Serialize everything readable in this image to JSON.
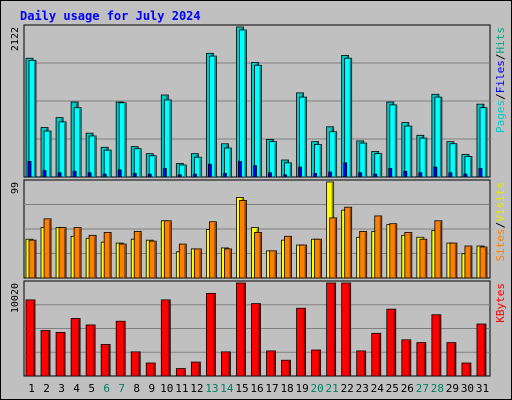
{
  "chart_data": {
    "type": "bar",
    "title": "Daily usage for July 2024",
    "categories": [
      "1",
      "2",
      "3",
      "4",
      "5",
      "6",
      "7",
      "8",
      "9",
      "10",
      "11",
      "12",
      "13",
      "14",
      "15",
      "16",
      "17",
      "18",
      "19",
      "20",
      "21",
      "22",
      "23",
      "24",
      "25",
      "26",
      "27",
      "28",
      "29",
      "30",
      "31"
    ],
    "weekend_days": [
      "6",
      "7",
      "13",
      "14",
      "20",
      "21",
      "27",
      "28"
    ],
    "panels": [
      {
        "name": "pages-files-hits",
        "ymax_label": "2122",
        "ylim": [
          0,
          2122
        ],
        "series": [
          {
            "name": "Hits",
            "color": "#00cccc",
            "values": [
              1680,
              700,
              840,
              1060,
              620,
              420,
              1060,
              430,
              330,
              1160,
              190,
              330,
              1750,
              470,
              2122,
              1620,
              530,
              240,
              1190,
              500,
              710,
              1720,
              510,
              360,
              1060,
              770,
              590,
              1170,
              500,
              320,
              1030
            ]
          },
          {
            "name": "Files",
            "color": "#00ffff",
            "values": [
              1650,
              650,
              780,
              980,
              580,
              380,
              1050,
              400,
              300,
              1090,
              170,
              280,
              1710,
              410,
              2080,
              1580,
              500,
              200,
              1130,
              460,
              640,
              1680,
              480,
              330,
              1020,
              720,
              550,
              1130,
              470,
              290,
              980
            ]
          },
          {
            "name": "Pages",
            "color": "#0000ff",
            "values": [
              220,
              90,
              60,
              80,
              60,
              40,
              100,
              50,
              40,
              120,
              30,
              40,
              180,
              50,
              220,
              160,
              60,
              30,
              140,
              50,
              70,
              200,
              60,
              40,
              120,
              80,
              60,
              140,
              60,
              40,
              120
            ]
          }
        ],
        "legend": [
          "Pages",
          "Files",
          "Hits"
        ]
      },
      {
        "name": "sites-visits",
        "ymax_label": "99",
        "ylim": [
          0,
          99
        ],
        "series": [
          {
            "name": "Visits",
            "color": "#ffff00",
            "values": [
              40,
              52,
              52,
              43,
              41,
              37,
              36,
              40,
              39,
              59,
              27,
              30,
              50,
              31,
              83,
              52,
              28,
              39,
              34,
              40,
              99,
              70,
              42,
              48,
              55,
              44,
              42,
              49,
              36,
              25,
              33
            ]
          },
          {
            "name": "Sites",
            "color": "#ff8000",
            "values": [
              39,
              61,
              52,
              52,
              44,
              47,
              35,
              48,
              38,
              59,
              35,
              30,
              58,
              30,
              80,
              47,
              28,
              43,
              34,
              40,
              62,
              73,
              48,
              64,
              56,
              47,
              40,
              59,
              36,
              33,
              32
            ]
          }
        ],
        "legend": [
          "Sites",
          "Visits"
        ]
      },
      {
        "name": "kbytes",
        "ymax_label": "10020",
        "ylim": [
          0,
          10020
        ],
        "series": [
          {
            "name": "KBytes",
            "color": "#ff0000",
            "values": [
              8200,
              4900,
              4700,
              6200,
              5500,
              3400,
              5900,
              2600,
              1400,
              8200,
              800,
              1500,
              8900,
              2600,
              10020,
              7800,
              2700,
              1700,
              7300,
              2800,
              10020,
              10020,
              2700,
              4600,
              7200,
              3900,
              3600,
              6600,
              3600,
              1400,
              5600
            ]
          }
        ],
        "legend": [
          "KBytes"
        ]
      }
    ]
  }
}
